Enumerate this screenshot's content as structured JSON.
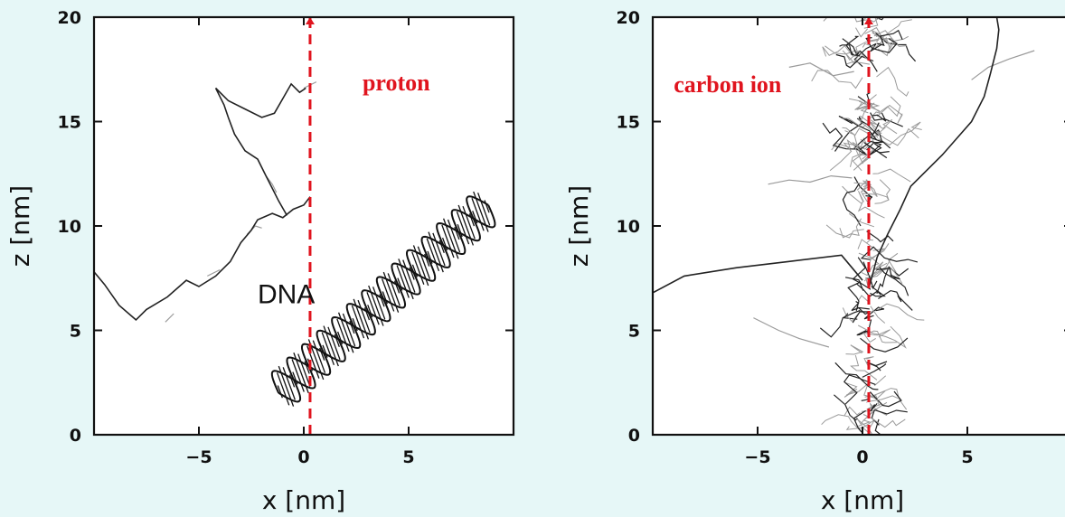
{
  "colors": {
    "background": "#e6f7f7",
    "plot_bg": "#ffffff",
    "beam_line": "#e0141e",
    "annotation": "#e0141e",
    "track_primary": "#222222",
    "track_secondary": "#9a9a9a"
  },
  "chart_data": [
    {
      "type": "line",
      "panel": "left",
      "xlabel": "x  [nm]",
      "ylabel": "z  [nm]",
      "xlim": [
        -10,
        10
      ],
      "ylim": [
        0,
        20
      ],
      "x_ticks": [
        -5,
        0,
        5
      ],
      "y_ticks": [
        0,
        5,
        10,
        15,
        20
      ],
      "grid": false,
      "annotations": [
        {
          "text": "proton",
          "x": 2.8,
          "y": 16.5
        },
        {
          "text": "DNA",
          "x": -2.2,
          "y": 6.3
        }
      ],
      "beam": {
        "x": 0.3,
        "y_range": [
          0,
          20
        ]
      },
      "tracks": [
        {
          "x": [
            -10,
            -9.5,
            -8.8,
            -8.0,
            -7.5,
            -6.5,
            -5.6,
            -5.0,
            -4.2,
            -3.5,
            -3.0,
            -2.5,
            -2.2,
            -1.5,
            -1.0,
            -0.5,
            0.0,
            0.3
          ],
          "z": [
            7.8,
            7.2,
            6.2,
            5.5,
            6.0,
            6.6,
            7.4,
            7.1,
            7.6,
            8.3,
            9.2,
            9.8,
            10.3,
            10.6,
            10.4,
            10.8,
            11.0,
            11.4
          ]
        },
        {
          "x": [
            -0.8,
            -1.2,
            -1.5,
            -1.8,
            -2.2,
            -2.8,
            -3.3,
            -3.6,
            -3.8,
            -4.0,
            -4.2,
            -3.6,
            -2.8,
            -2.0,
            -1.4,
            -1.0,
            -0.6,
            -0.2,
            0.1
          ],
          "z": [
            10.5,
            11.2,
            11.8,
            12.4,
            13.2,
            13.6,
            14.4,
            15.2,
            15.8,
            16.2,
            16.6,
            16.0,
            15.6,
            15.2,
            15.4,
            16.1,
            16.8,
            16.4,
            16.6
          ]
        }
      ],
      "secondary_tracks": [
        {
          "x": [
            -1.8,
            -1.5,
            -1.3
          ],
          "z": [
            12.4,
            12.0,
            11.6
          ]
        },
        {
          "x": [
            -4.6,
            -4.0
          ],
          "z": [
            7.6,
            7.9
          ]
        },
        {
          "x": [
            -6.6,
            -6.2
          ],
          "z": [
            5.4,
            5.8
          ]
        },
        {
          "x": [
            -2.7,
            -2.3,
            -2.0
          ],
          "z": [
            9.6,
            10.0,
            9.9
          ]
        },
        {
          "x": [
            0.0,
            0.6
          ],
          "z": [
            16.6,
            16.9
          ]
        }
      ],
      "dna": {
        "x_start": -1.2,
        "z_start": 2.0,
        "x_end": 8.8,
        "z_end": 11.0,
        "turns": 7
      }
    },
    {
      "type": "line",
      "panel": "right",
      "xlabel": "x  [nm]",
      "ylabel": "z  [nm]",
      "xlim": [
        -10,
        10
      ],
      "ylim": [
        0,
        20
      ],
      "x_ticks": [
        -5,
        0,
        5
      ],
      "y_ticks": [
        0,
        5,
        10,
        15,
        20
      ],
      "grid": false,
      "annotations": [
        {
          "text": "carbon ion",
          "x": -9.0,
          "y": 16.4
        }
      ],
      "beam": {
        "x": 0.3,
        "y_range": [
          0,
          20
        ]
      },
      "tracks": [
        {
          "x": [
            -10,
            -8.5,
            -6.0,
            -3.5,
            -1.0,
            -0.5,
            0.0
          ],
          "z": [
            6.8,
            7.6,
            8.0,
            8.3,
            8.6,
            8.0,
            7.4
          ]
        },
        {
          "x": [
            0.3,
            0.7,
            1.2,
            1.8,
            2.3,
            3.0,
            3.8,
            4.5,
            5.2,
            5.8,
            6.1,
            6.4,
            6.5,
            6.4
          ],
          "z": [
            7.0,
            8.5,
            9.6,
            10.8,
            11.9,
            12.6,
            13.4,
            14.2,
            15.0,
            16.2,
            17.3,
            18.5,
            19.4,
            20.0
          ]
        }
      ],
      "secondary_tracks": [
        {
          "x": [
            5.2,
            6.0,
            7.0,
            8.2
          ],
          "z": [
            17.0,
            17.6,
            18.0,
            18.4
          ]
        },
        {
          "x": [
            -4.5,
            -3.5,
            -2.5,
            -1.5,
            -0.5
          ],
          "z": [
            12.0,
            12.2,
            12.1,
            12.4,
            12.3
          ]
        },
        {
          "x": [
            -5.2,
            -4.0,
            -3.0,
            -1.6
          ],
          "z": [
            5.6,
            5.0,
            4.6,
            4.2
          ]
        },
        {
          "x": [
            -3.5,
            -2.5,
            -1.4,
            -0.4
          ],
          "z": [
            17.6,
            17.8,
            17.2,
            17.4
          ]
        }
      ]
    }
  ]
}
